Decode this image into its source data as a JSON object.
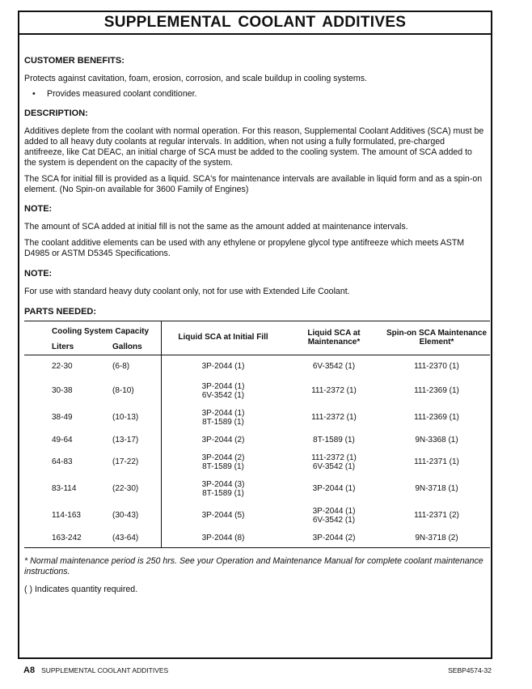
{
  "title": "SUPPLEMENTAL COOLANT ADDITIVES",
  "sections": {
    "benefits_heading": "CUSTOMER BENEFITS:",
    "benefits_text": "Protects against cavitation, foam, erosion, corrosion, and scale buildup in cooling systems.",
    "benefits_bullet": "Provides measured coolant conditioner.",
    "description_heading": "DESCRIPTION:",
    "description_p1": "Additives deplete from the coolant with normal operation. For this reason, Supplemental Coolant Additives (SCA) must be added to all heavy duty coolants at regular intervals. In addition, when not using a fully formulated, pre-charged antifreeze, like Cat DEAC, an initial charge of SCA must be added to the cooling system. The amount of SCA added to the system is dependent on the capacity of the system.",
    "description_p2": "The SCA for initial fill is provided as a liquid. SCA's for maintenance intervals are available in liquid form and as a spin-on element. (No Spin-on available for 3600 Family of Engines)",
    "note1_heading": "NOTE:",
    "note1_p1": "The amount of SCA added at initial fill is not the same as the amount added at maintenance intervals.",
    "note1_p2": "The coolant additive elements can be used with any ethylene or propylene glycol type antifreeze which meets ASTM D4985 or ASTM D5345 Specifications.",
    "note2_heading": "NOTE:",
    "note2_p1": "For use with standard heavy duty coolant only, not for use with Extended Life Coolant.",
    "parts_heading": "PARTS NEEDED:"
  },
  "table": {
    "group_header": "Cooling System Capacity",
    "headers": [
      "Liters",
      "Gallons",
      "Liquid SCA at Initial Fill",
      "Liquid SCA at Maintenance*",
      "Spin-on SCA Maintenance Element*"
    ],
    "rows": [
      [
        "22-30",
        "(6-8)",
        [
          "3P-2044 (1)"
        ],
        [
          "6V-3542 (1)"
        ],
        "111-2370 (1)"
      ],
      [
        "30-38",
        "(8-10)",
        [
          "3P-2044 (1)",
          "6V-3542 (1)"
        ],
        [
          "111-2372 (1)"
        ],
        "111-2369 (1)"
      ],
      [
        "38-49",
        "(10-13)",
        [
          "3P-2044 (1)",
          "8T-1589 (1)"
        ],
        [
          "111-2372 (1)"
        ],
        "111-2369 (1)"
      ],
      [
        "49-64",
        "(13-17)",
        [
          "3P-2044 (2)"
        ],
        [
          "8T-1589 (1)"
        ],
        "9N-3368 (1)"
      ],
      [
        "64-83",
        "(17-22)",
        [
          "3P-2044 (2)",
          "8T-1589 (1)"
        ],
        [
          "111-2372 (1)",
          "6V-3542 (1)"
        ],
        "111-2371 (1)"
      ],
      [
        "83-114",
        "(22-30)",
        [
          "3P-2044 (3)",
          "8T-1589 (1)"
        ],
        [
          "3P-2044 (1)"
        ],
        "9N-3718 (1)"
      ],
      [
        "114-163",
        "(30-43)",
        [
          "3P-2044 (5)"
        ],
        [
          "3P-2044 (1)",
          "6V-3542 (1)"
        ],
        "111-2371 (2)"
      ],
      [
        "163-242",
        "(43-64)",
        [
          "3P-2044 (8)"
        ],
        [
          "3P-2044 (2)"
        ],
        "9N-3718 (2)"
      ]
    ]
  },
  "footnote": "* Normal maintenance period is 250 hrs. See your Operation and Maintenance Manual for complete coolant maintenance instructions.",
  "quantity_note": "( ) Indicates quantity required.",
  "footer": {
    "page": "A8",
    "section": "SUPPLEMENTAL COOLANT ADDITIVES",
    "code": "SEBP4574-32"
  }
}
